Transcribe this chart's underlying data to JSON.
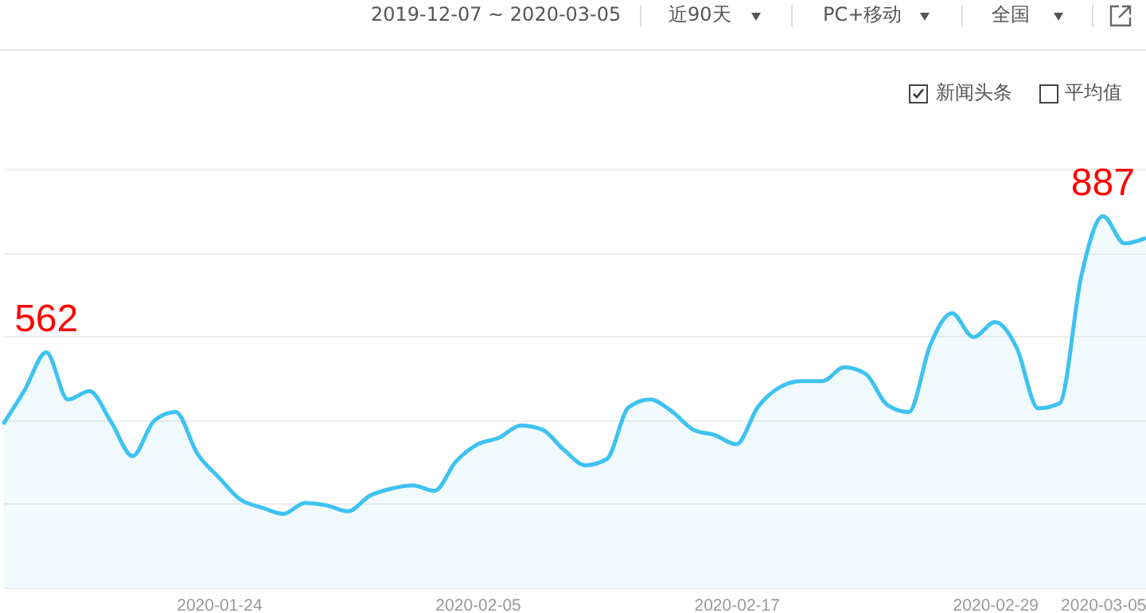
{
  "chart_data": {
    "type": "area",
    "x": [
      "2020-01-14",
      "2020-01-15",
      "2020-01-16",
      "2020-01-17",
      "2020-01-18",
      "2020-01-19",
      "2020-01-20",
      "2020-01-21",
      "2020-01-22",
      "2020-01-23",
      "2020-01-24",
      "2020-01-25",
      "2020-01-26",
      "2020-01-27",
      "2020-01-28",
      "2020-01-29",
      "2020-01-30",
      "2020-01-31",
      "2020-02-01",
      "2020-02-02",
      "2020-02-03",
      "2020-02-04",
      "2020-02-05",
      "2020-02-06",
      "2020-02-07",
      "2020-02-08",
      "2020-02-09",
      "2020-02-10",
      "2020-02-11",
      "2020-02-12",
      "2020-02-13",
      "2020-02-14",
      "2020-02-15",
      "2020-02-16",
      "2020-02-17",
      "2020-02-18",
      "2020-02-19",
      "2020-02-20",
      "2020-02-21",
      "2020-02-22",
      "2020-02-23",
      "2020-02-24",
      "2020-02-25",
      "2020-02-26",
      "2020-02-27",
      "2020-02-28",
      "2020-02-29",
      "2020-03-01",
      "2020-03-02",
      "2020-03-03",
      "2020-03-04",
      "2020-03-05",
      "2020-03-06",
      "2020-03-07"
    ],
    "series": [
      {
        "color": "#3ec2f2",
        "values": [
          390,
          472,
          562,
          449,
          469,
          396,
          314,
          398,
          419,
          320,
          263,
          210,
          191,
          176,
          202,
          196,
          182,
          219,
          236,
          244,
          231,
          301,
          342,
          358,
          387,
          377,
          329,
          292,
          307,
          430,
          449,
          421,
          377,
          364,
          342,
          431,
          478,
          493,
          493,
          526,
          510,
          436,
          419,
          580,
          655,
          598,
          634,
          573,
          428,
          440,
          744,
          887,
          822,
          835
        ],
        "value_labels": [
          null,
          null,
          "562",
          null,
          null,
          null,
          null,
          null,
          null,
          null,
          null,
          null,
          null,
          null,
          null,
          null,
          null,
          null,
          null,
          null,
          null,
          null,
          null,
          null,
          null,
          null,
          null,
          null,
          null,
          null,
          null,
          null,
          null,
          null,
          null,
          null,
          null,
          null,
          null,
          null,
          null,
          null,
          null,
          null,
          null,
          null,
          null,
          null,
          null,
          null,
          null,
          "887",
          null,
          null
        ]
      }
    ],
    "xlim": [
      "2020-01-14",
      "2020-03-07"
    ],
    "xticks": [
      "2020-01-24",
      "2020-02-05",
      "2020-02-17",
      "2020-02-29",
      "2020-03-05"
    ],
    "ylim": [
      0,
      1000
    ],
    "yticks": [
      {
        "value": 0,
        "label": null
      },
      {
        "value": 200,
        "label": null
      },
      {
        "value": 400,
        "label": null
      },
      {
        "value": 600,
        "label": null
      },
      {
        "value": 800,
        "label": null
      },
      {
        "value": 1000,
        "label": null
      }
    ],
    "grid": "y",
    "tick_labels": "x",
    "annotations": [
      "2019-12-07 ~ 2020-03-05",
      "近90天",
      "PC+移动",
      "全国",
      "新闻头条",
      "平均值"
    ]
  }
}
